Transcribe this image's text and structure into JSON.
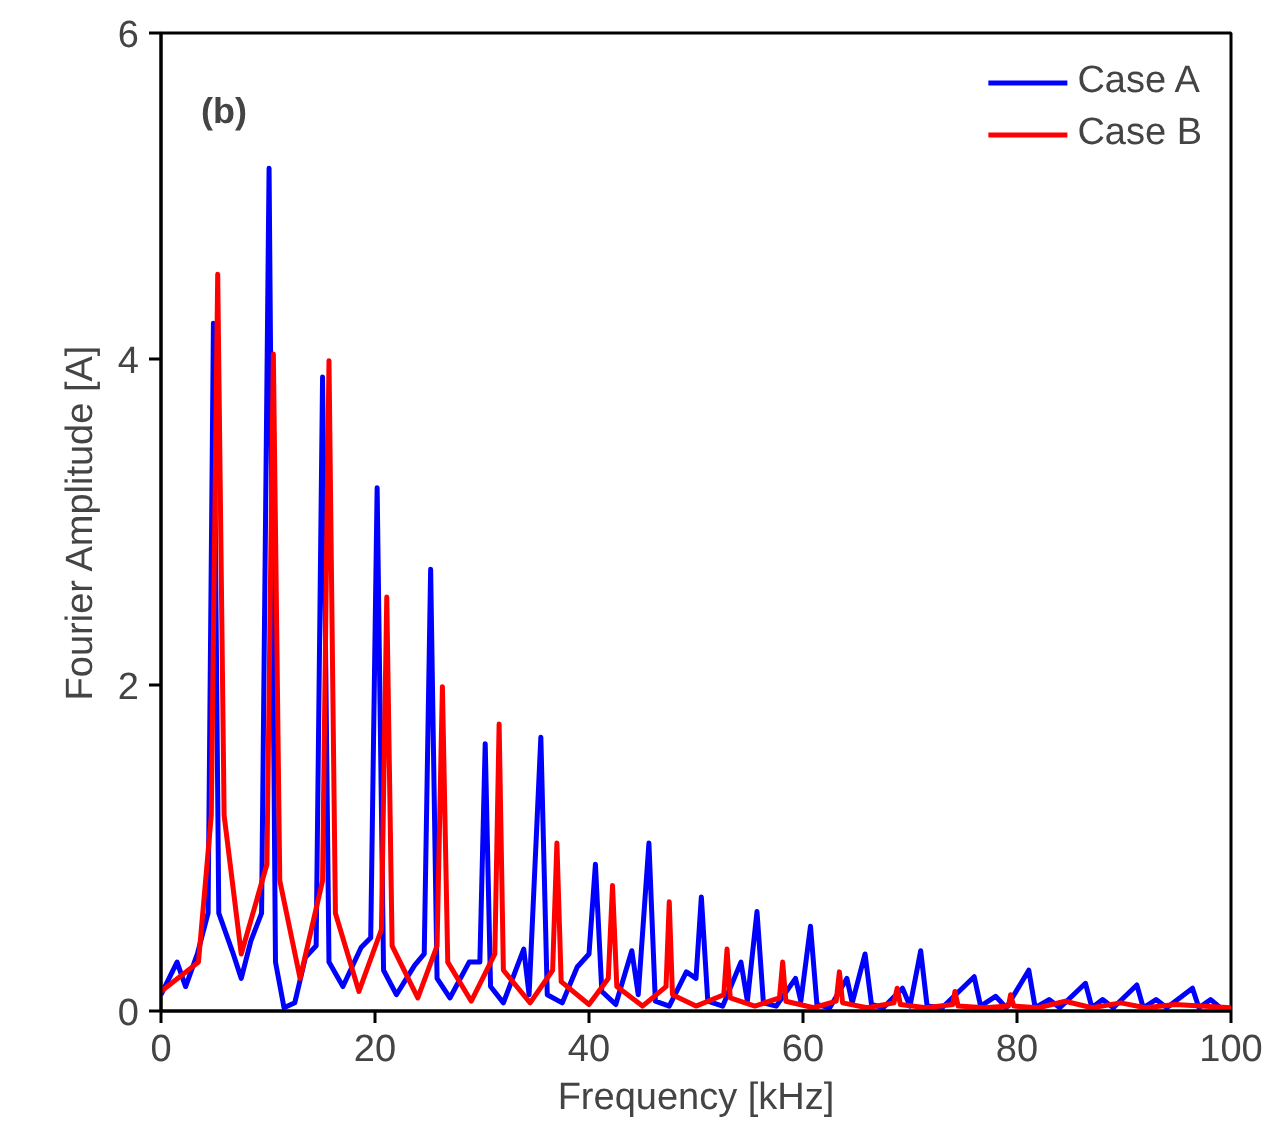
{
  "chart_data": {
    "type": "line",
    "xlabel": "Frequency [kHz]",
    "ylabel": "Fourier Amplitude [A]",
    "annotations": [
      "(b)"
    ],
    "xlim": [
      0,
      100
    ],
    "ylim": [
      0,
      6
    ],
    "xticks": [
      0,
      20,
      40,
      60,
      80,
      100
    ],
    "yticks": [
      0,
      2,
      4,
      6
    ],
    "grid": false,
    "legend": "top right",
    "marker": "none",
    "line_style": "solid",
    "series": [
      {
        "name": "Case A",
        "color": "#0000ff",
        "x": [
          0,
          1.5,
          2.3,
          3.4,
          4.4,
          4.9,
          5.4,
          6.7,
          7.5,
          8.4,
          9.4,
          10.1,
          10.7,
          11.5,
          12.5,
          13.5,
          14.5,
          15.1,
          15.7,
          17,
          18.7,
          19.6,
          20.2,
          20.8,
          22,
          23.7,
          24.6,
          25.2,
          25.8,
          27,
          28.8,
          29.8,
          30.3,
          30.8,
          32,
          33.9,
          34.4,
          35.5,
          36.1,
          37.5,
          38.9,
          40,
          40.6,
          41.2,
          42.5,
          44,
          44.6,
          45.6,
          46.2,
          47.5,
          49.1,
          50,
          50.5,
          51.1,
          52.5,
          54.2,
          54.8,
          55.7,
          56.3,
          57.5,
          59.3,
          59.8,
          60.7,
          61.3,
          62.5,
          64.1,
          64.6,
          65.8,
          66.4,
          67.5,
          69.3,
          70,
          71,
          71.6,
          73,
          76,
          76.6,
          78,
          79,
          81.1,
          81.7,
          83,
          84,
          86.4,
          87,
          88,
          89,
          91.2,
          91.8,
          93,
          94,
          96.4,
          97,
          98.1,
          99
        ],
        "values": [
          0.1,
          0.3,
          0.15,
          0.35,
          0.6,
          4.22,
          0.6,
          0.36,
          0.2,
          0.43,
          0.6,
          5.17,
          0.3,
          0.02,
          0.05,
          0.33,
          0.4,
          3.89,
          0.3,
          0.15,
          0.39,
          0.45,
          3.21,
          0.25,
          0.1,
          0.28,
          0.35,
          2.71,
          0.2,
          0.08,
          0.3,
          0.3,
          1.64,
          0.15,
          0.05,
          0.38,
          0.1,
          1.68,
          0.1,
          0.05,
          0.27,
          0.35,
          0.9,
          0.12,
          0.04,
          0.37,
          0.1,
          1.03,
          0.06,
          0.03,
          0.24,
          0.2,
          0.7,
          0.06,
          0.03,
          0.3,
          0.06,
          0.61,
          0.05,
          0.03,
          0.2,
          0.06,
          0.52,
          0.04,
          0.02,
          0.2,
          0.05,
          0.35,
          0.04,
          0.02,
          0.14,
          0.03,
          0.37,
          0.03,
          0.02,
          0.21,
          0.03,
          0.09,
          0.02,
          0.25,
          0.02,
          0.07,
          0.02,
          0.17,
          0.02,
          0.07,
          0.02,
          0.16,
          0.02,
          0.07,
          0.02,
          0.14,
          0.02,
          0.07,
          0.02
        ]
      },
      {
        "name": "Case B",
        "color": "#ff0000",
        "x": [
          0,
          3.5,
          4.7,
          5.3,
          5.9,
          7.5,
          9.9,
          10.5,
          11.1,
          13,
          15.1,
          15.7,
          16.3,
          18.5,
          20.6,
          21.1,
          21.6,
          24,
          25.8,
          26.3,
          26.8,
          29,
          31.2,
          31.6,
          32,
          34.5,
          36.6,
          37,
          37.4,
          40,
          41.8,
          42.2,
          42.6,
          45,
          47.2,
          47.5,
          47.8,
          50,
          52.6,
          52.9,
          53.2,
          55.5,
          57.8,
          58.1,
          58.4,
          61,
          63.1,
          63.4,
          63.7,
          66,
          68.5,
          68.8,
          69.1,
          71.5,
          74,
          74.2,
          74.5,
          77,
          79.2,
          79.4,
          79.7,
          82,
          84.5,
          87,
          89.7,
          92,
          94.8,
          100
        ],
        "values": [
          0.12,
          0.3,
          1.2,
          4.52,
          1.2,
          0.35,
          0.9,
          4.03,
          0.8,
          0.2,
          0.8,
          3.99,
          0.6,
          0.12,
          0.5,
          2.54,
          0.4,
          0.08,
          0.4,
          1.99,
          0.3,
          0.06,
          0.35,
          1.76,
          0.25,
          0.05,
          0.25,
          1.03,
          0.18,
          0.04,
          0.2,
          0.77,
          0.15,
          0.03,
          0.15,
          0.67,
          0.1,
          0.03,
          0.1,
          0.38,
          0.08,
          0.03,
          0.08,
          0.3,
          0.06,
          0.02,
          0.06,
          0.24,
          0.05,
          0.02,
          0.05,
          0.14,
          0.04,
          0.02,
          0.04,
          0.12,
          0.03,
          0.02,
          0.03,
          0.1,
          0.03,
          0.02,
          0.06,
          0.02,
          0.05,
          0.02,
          0.04,
          0.02
        ]
      }
    ]
  }
}
